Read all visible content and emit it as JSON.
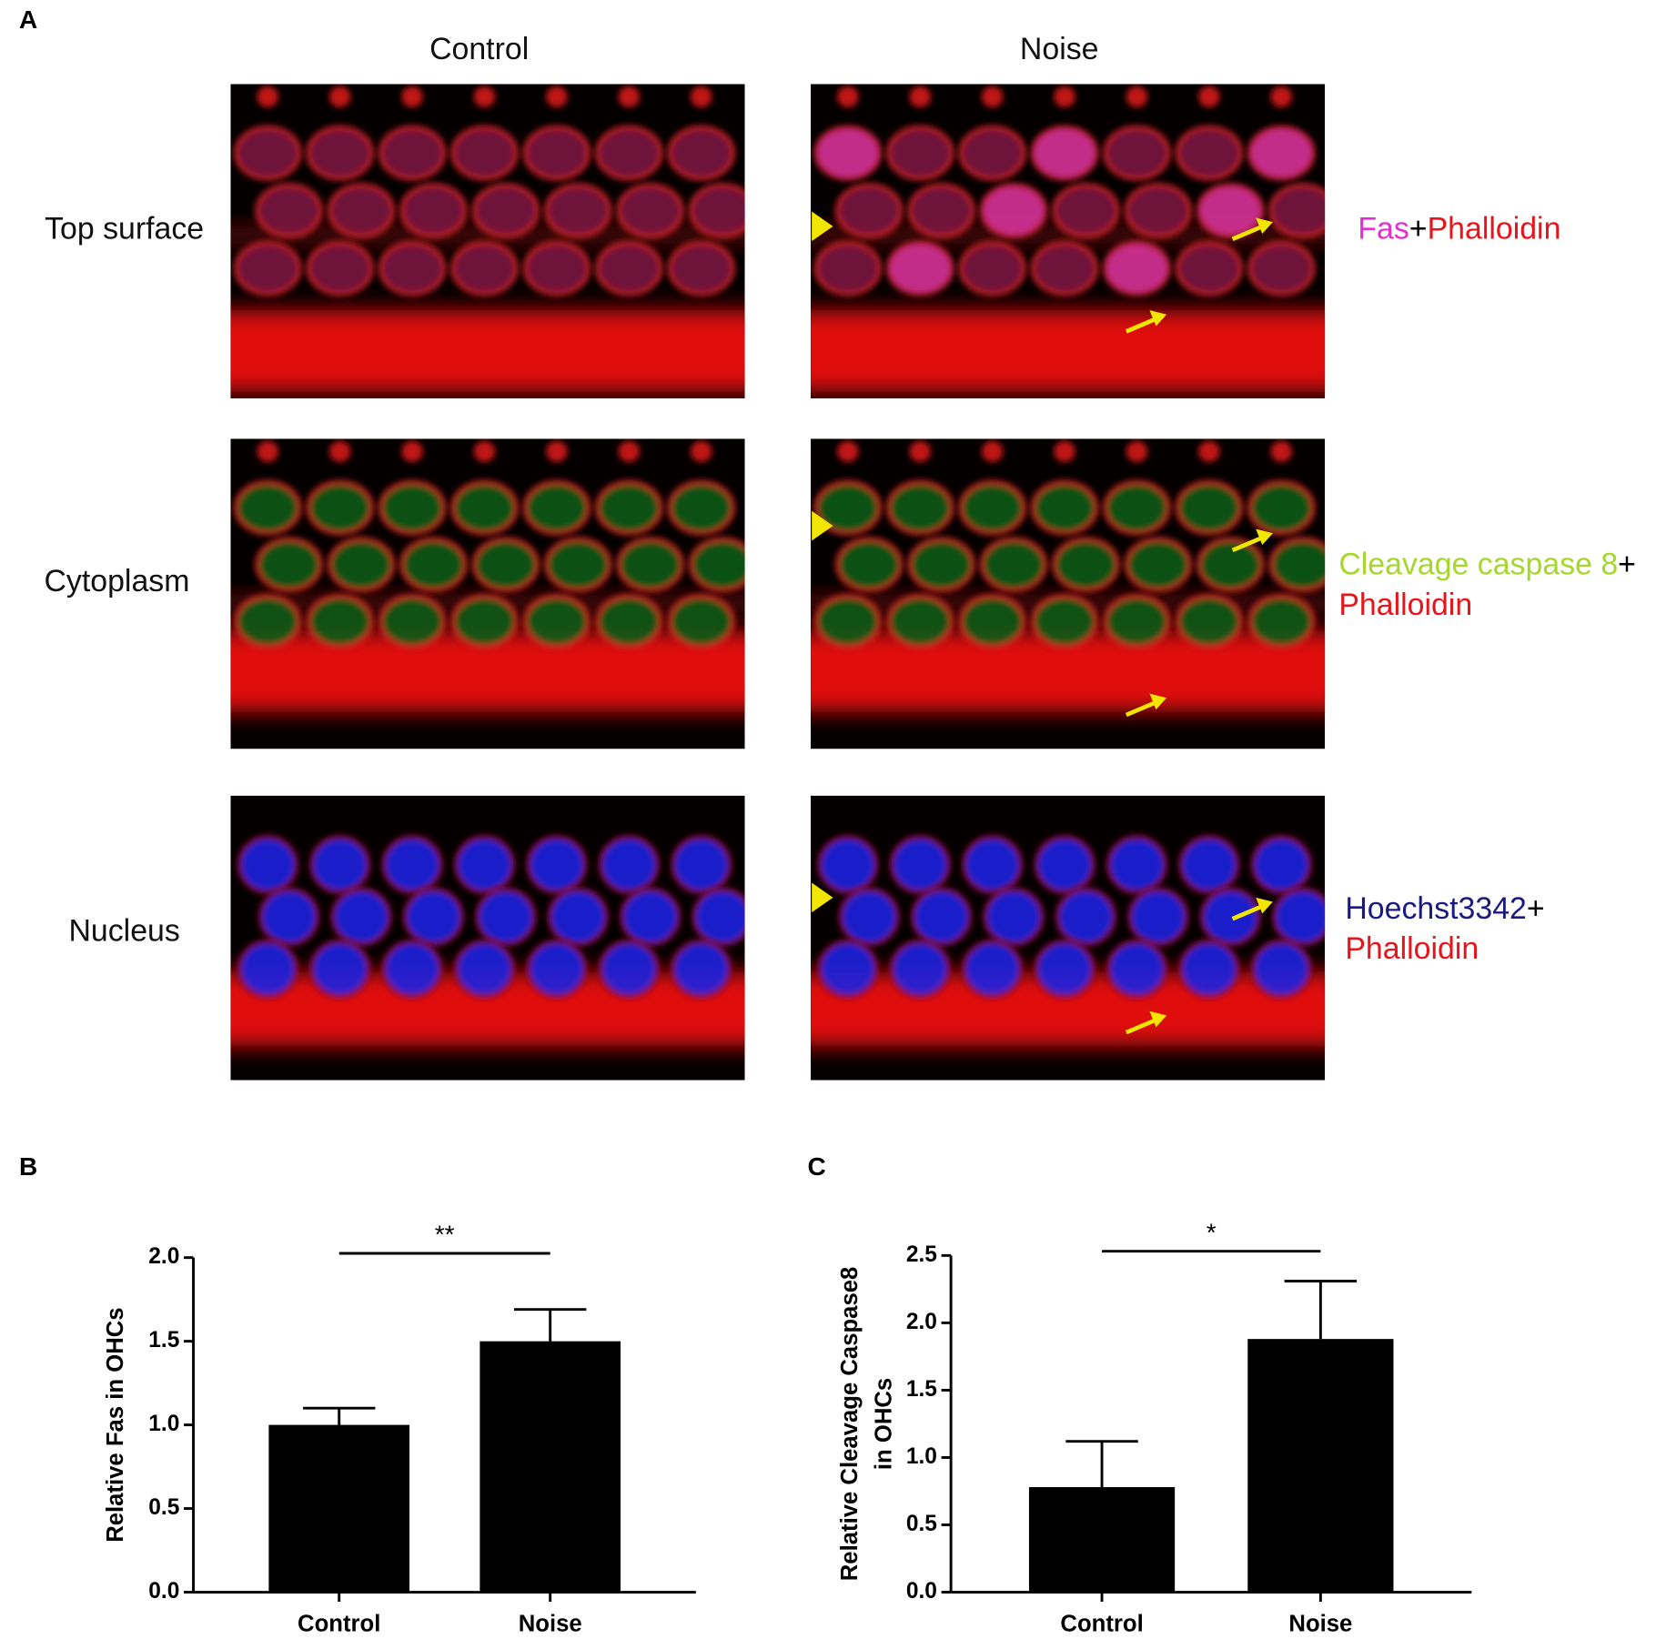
{
  "panel_a": {
    "label": "A",
    "columns": [
      "Control",
      "Noise"
    ],
    "rows": [
      "Top surface",
      "Cytoplasm",
      "Nucleus"
    ],
    "stains": [
      [
        [
          {
            "text": "Fas",
            "color": "#e030d0"
          },
          {
            "text": "+",
            "color": "#000000"
          },
          {
            "text": "Phalloidin",
            "color": "#e8141c"
          }
        ]
      ],
      [
        [
          {
            "text": "Cleavage caspase 8",
            "color": "#a6d82c"
          },
          {
            "text": "+",
            "color": "#000000"
          }
        ],
        [
          {
            "text": "Phalloidin",
            "color": "#e8141c"
          }
        ]
      ],
      [
        [
          {
            "text": "Hoechst3342",
            "color": "#1a1a80"
          },
          {
            "text": "+",
            "color": "#000000"
          }
        ],
        [
          {
            "text": "Phalloidin",
            "color": "#e8141c"
          }
        ]
      ]
    ]
  },
  "chart_data": [
    {
      "type": "bar",
      "panel": "B",
      "ylabel": [
        "Relative Fas in OHCs"
      ],
      "categories": [
        "Control",
        "Noise"
      ],
      "values": [
        1.0,
        1.5
      ],
      "errors": [
        0.1,
        0.19
      ],
      "color": "#000000",
      "ylim": [
        0,
        2
      ],
      "yticks": [
        {
          "value": 0,
          "label": "0.0"
        },
        {
          "value": 0.5,
          "label": "0.5"
        },
        {
          "value": 1,
          "label": "1.0"
        },
        {
          "value": 1.5,
          "label": "1.5"
        },
        {
          "value": 2,
          "label": "2.0"
        }
      ],
      "annotations": [
        {
          "text": "**"
        }
      ]
    },
    {
      "type": "bar",
      "panel": "C",
      "ylabel": [
        "Relative Cleavage Caspase8",
        "in OHCs"
      ],
      "categories": [
        "Control",
        "Noise"
      ],
      "values": [
        0.78,
        1.88
      ],
      "errors": [
        0.34,
        0.43
      ],
      "color": "#000000",
      "ylim": [
        0,
        2.5
      ],
      "yticks": [
        {
          "value": 0,
          "label": "0.0"
        },
        {
          "value": 0.5,
          "label": "0.5"
        },
        {
          "value": 1,
          "label": "1.0"
        },
        {
          "value": 1.5,
          "label": "1.5"
        },
        {
          "value": 2,
          "label": "2.0"
        },
        {
          "value": 2.5,
          "label": "2.5"
        }
      ],
      "annotations": [
        {
          "text": "*"
        }
      ]
    }
  ]
}
